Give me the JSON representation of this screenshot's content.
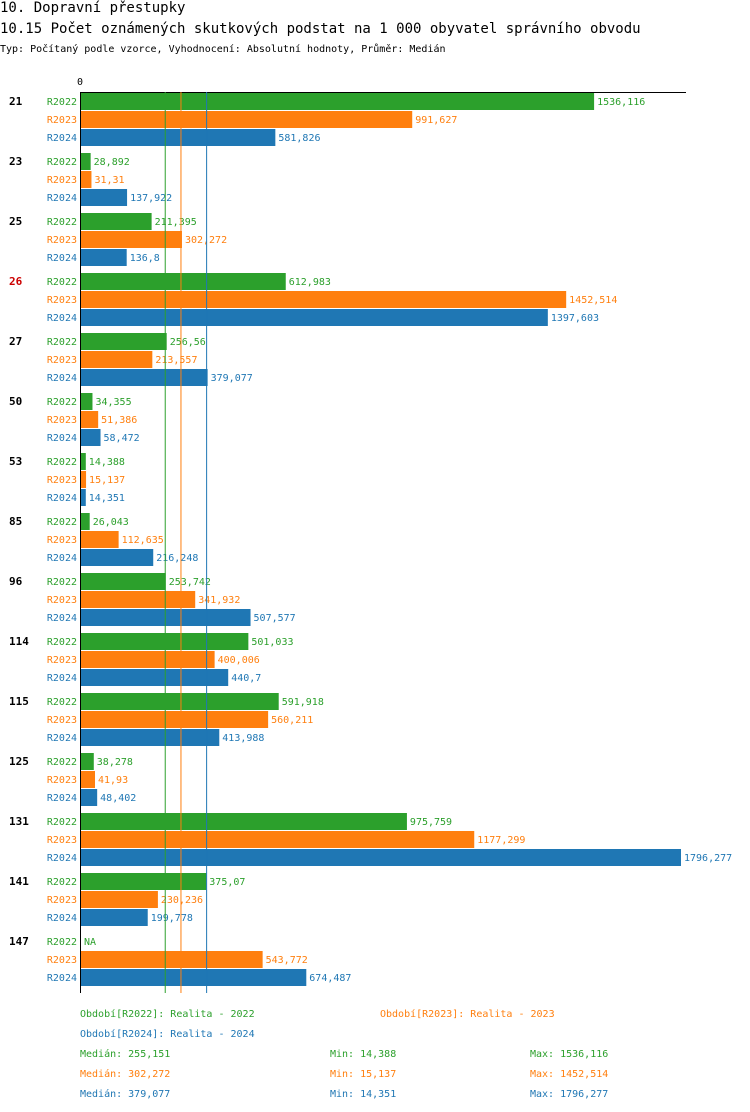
{
  "header": {
    "title": "10. Dopravní přestupky",
    "subtitle": "10.15 Počet oznámených skutkových podstat na 1 000 obyvatel správního obvodu",
    "info": "Typ: Počítaný podle vzorce, Vyhodnocení: Absolutní hodnoty, Průměr: Medián"
  },
  "colors": {
    "R2022": "#2ca02c",
    "R2023": "#ff7f0e",
    "R2024": "#1f77b4",
    "highlight": "#cc0000",
    "text": "#000000"
  },
  "chart_data": {
    "type": "bar",
    "orientation": "horizontal",
    "x_tick_label": "0",
    "series_names": [
      "R2022",
      "R2023",
      "R2024"
    ],
    "categories": [
      "21",
      "23",
      "25",
      "26",
      "27",
      "50",
      "53",
      "85",
      "96",
      "114",
      "115",
      "125",
      "131",
      "141",
      "147"
    ],
    "highlighted_category": "26",
    "series": [
      {
        "name": "R2022",
        "values": [
          1536.116,
          28.892,
          211.395,
          612.983,
          256.56,
          34.355,
          14.388,
          26.043,
          253.742,
          501.033,
          591.918,
          38.278,
          975.759,
          375.07,
          null
        ],
        "labels": [
          "1536,116",
          "28,892",
          "211,395",
          "612,983",
          "256,56",
          "34,355",
          "14,388",
          "26,043",
          "253,742",
          "501,033",
          "591,918",
          "38,278",
          "975,759",
          "375,07",
          "NA"
        ]
      },
      {
        "name": "R2023",
        "values": [
          991.627,
          31.31,
          302.272,
          1452.514,
          213.557,
          51.386,
          15.137,
          112.635,
          341.932,
          400.006,
          560.211,
          41.93,
          1177.299,
          230.236,
          543.772
        ],
        "labels": [
          "991,627",
          "31,31",
          "302,272",
          "1452,514",
          "213,557",
          "51,386",
          "15,137",
          "112,635",
          "341,932",
          "400,006",
          "560,211",
          "41,93",
          "1177,299",
          "230,236",
          "543,772"
        ]
      },
      {
        "name": "R2024",
        "values": [
          581.826,
          137.922,
          136.8,
          1397.603,
          379.077,
          58.472,
          14.351,
          216.248,
          507.577,
          440.7,
          413.988,
          48.402,
          1796.277,
          199.778,
          674.487
        ],
        "labels": [
          "581,826",
          "137,922",
          "136,8",
          "1397,603",
          "379,077",
          "58,472",
          "14,351",
          "216,248",
          "507,577",
          "440,7",
          "413,988",
          "48,402",
          "1796,277",
          "199,778",
          "674,487"
        ]
      }
    ],
    "medians": [
      255.151,
      302.272,
      379.077
    ],
    "xlim": [
      0,
      1796.277
    ]
  },
  "legend": {
    "r2022": "Období[R2022]: Realita - 2022",
    "r2023": "Období[R2023]: Realita - 2023",
    "r2024": "Období[R2024]: Realita - 2024"
  },
  "stats": [
    {
      "median": "Medián: 255,151",
      "min": "Min: 14,388",
      "max": "Max: 1536,116"
    },
    {
      "median": "Medián: 302,272",
      "min": "Min: 15,137",
      "max": "Max: 1452,514"
    },
    {
      "median": "Medián: 379,077",
      "min": "Min: 14,351",
      "max": "Max: 1796,277"
    }
  ]
}
